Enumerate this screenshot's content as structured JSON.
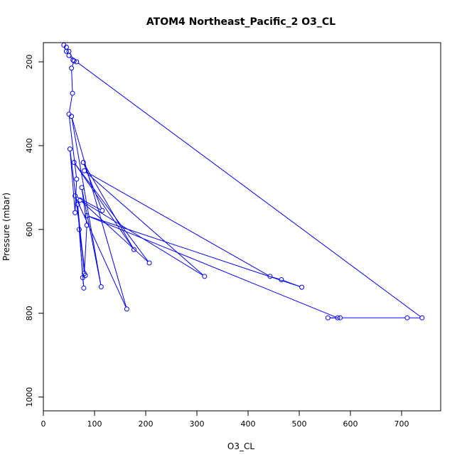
{
  "chart_data": {
    "type": "line",
    "title": "ATOM4 Northeast_Pacific_2 O3_CL",
    "xlabel": "O3_CL",
    "ylabel": "Pressure (mbar)",
    "xlim": [
      0,
      770
    ],
    "ylim": [
      1030,
      160
    ],
    "y_reversed": true,
    "x_ticks": [
      0,
      100,
      200,
      300,
      400,
      500,
      600,
      700
    ],
    "y_ticks": [
      200,
      400,
      600,
      800,
      1000
    ],
    "grid": false,
    "line_color": "#0000ff",
    "marker": "open-circle",
    "series": [
      {
        "points": [
          [
            40,
            160
          ],
          [
            45,
            175
          ],
          [
            50,
            185
          ],
          [
            58,
            196
          ],
          [
            65,
            200
          ],
          [
            740,
            811
          ],
          [
            711,
            811
          ],
          [
            580,
            811
          ],
          [
            556,
            811
          ],
          [
            575,
            811
          ],
          [
            85,
            567
          ],
          [
            505,
            738
          ],
          [
            465,
            720
          ],
          [
            443,
            712
          ],
          [
            80,
            460
          ],
          [
            315,
            712
          ],
          [
            72,
            530
          ],
          [
            207,
            680
          ],
          [
            60,
            440
          ],
          [
            177,
            648
          ],
          [
            78,
            440
          ],
          [
            115,
            555
          ],
          [
            62,
            520
          ],
          [
            163,
            790
          ],
          [
            55,
            330
          ],
          [
            113,
            737
          ],
          [
            75,
            500
          ],
          [
            85,
            590
          ],
          [
            80,
            705
          ],
          [
            67,
            540
          ],
          [
            77,
            715
          ],
          [
            79,
            740
          ],
          [
            70,
            600
          ],
          [
            82,
            710
          ],
          [
            52,
            408
          ],
          [
            62,
            560
          ],
          [
            65,
            480
          ],
          [
            50,
            325
          ],
          [
            57,
            275
          ],
          [
            55,
            215
          ],
          [
            60,
            198
          ],
          [
            50,
            175
          ],
          [
            45,
            165
          ]
        ]
      }
    ]
  }
}
